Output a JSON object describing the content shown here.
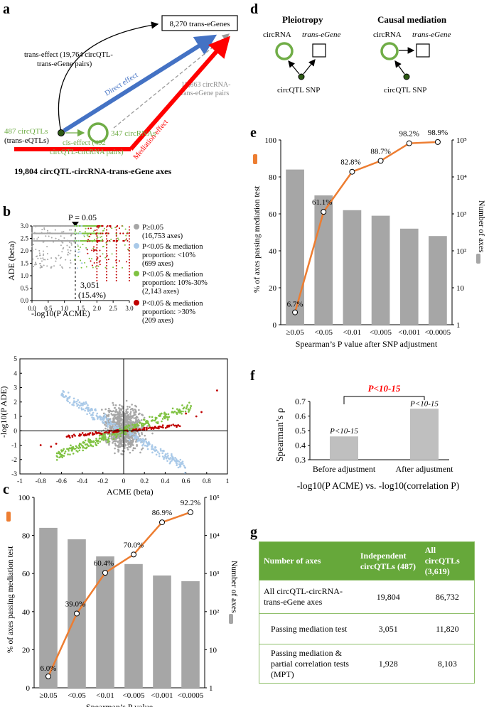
{
  "panels": {
    "a": "a",
    "b": "b",
    "c": "c",
    "d": "d",
    "e": "e",
    "f": "f",
    "g": "g"
  },
  "panel_a": {
    "egenes_box": "8,270 trans-eGenes",
    "trans_effect_line1": "trans-effect (19,764 circQTL-",
    "trans_effect_line2": "trans-eGene pairs)",
    "direct_effect": "Direct effect",
    "circrna_pairs_line1": "18,863 circRNA-",
    "circrna_pairs_line2": "trans-eGene pairs",
    "circqtls_line1": "487 circQTLs",
    "circqtls_line2": "(trans-eQTLs)",
    "cis_effect_line1": "cis-effect (492",
    "cis_effect_line2": "circQTL-circRNA pairs)",
    "circrnas": "347 circRNAs",
    "mediation_effect": "Mediation effect",
    "axes_total": "19,804 circQTL-circRNA-trans-eGene axes"
  },
  "panel_d": {
    "pleiotropy_title": "Pleiotropy",
    "causal_title": "Causal mediation",
    "circrna": "circRNA",
    "trans_egene": "trans-eGene",
    "snp": "circQTL SNP"
  },
  "colors": {
    "gray": "#a6a6a6",
    "light_blue": "#a9c9e8",
    "green": "#7fc241",
    "red": "#c00000",
    "orange": "#ed7d31",
    "blue_arrow": "#4472c4",
    "red_arrow": "#ff0000",
    "table_green": "#66a83a"
  },
  "panel_b_top": {
    "p_label": "P = 0.05",
    "count_label": "3,051",
    "pct_label": "(15.4%)",
    "legend": [
      {
        "line1": "P≥0.05",
        "line2": "(16,753 axes)",
        "color": "#a6a6a6"
      },
      {
        "line1": "P<0.05 & mediation",
        "line2": "proportion: <10%",
        "line3": "(699 axes)",
        "color": "#a9c9e8"
      },
      {
        "line1": "P<0.05 & mediation",
        "line2": "proportion: 10%-30%",
        "line3": "(2,143 axes)",
        "color": "#7fc241"
      },
      {
        "line1": "P<0.05 & mediation",
        "line2": "proportion: >30%",
        "line3": "(209 axes)",
        "color": "#c00000"
      }
    ]
  },
  "chart_data": [
    {
      "id": "b_top",
      "type": "scatter",
      "xlabel": "-log10(P ACME)",
      "ylabel": "-log10(P ADE)",
      "xlim": [
        0,
        3.0
      ],
      "ylim": [
        0,
        3.0
      ],
      "xticks": [
        "0.0",
        "0.5",
        "1.0",
        "1.5",
        "2.0",
        "2.5",
        "3.0"
      ],
      "yticks": [
        "0.0",
        "0.5",
        "1.0",
        "1.5",
        "2.0",
        "2.5",
        "3.0"
      ],
      "threshold_x": 1.3
    },
    {
      "id": "b_bottom",
      "type": "scatter",
      "xlabel": "ACME (beta)",
      "ylabel": "ADE (beta)",
      "xlim": [
        -1,
        1
      ],
      "ylim": [
        -3,
        5
      ],
      "xticks": [
        "-1",
        "-0.8",
        "-0.6",
        "-0.4",
        "-0.2",
        "0",
        "0.2",
        "0.4",
        "0.6",
        "0.8",
        "1"
      ],
      "yticks": [
        "-3",
        "-2",
        "-1",
        "0",
        "1",
        "2",
        "3",
        "4",
        "5"
      ]
    },
    {
      "id": "c",
      "type": "bar+line",
      "xlabel": "Spearman’s P value",
      "ylabel_left": "% of axes passing mediation test",
      "ylabel_right": "Number of axes",
      "categories": [
        "≥0.05",
        "<0.05",
        "<0.01",
        "<0.005",
        "<0.001",
        "<0.0005"
      ],
      "bar_values_log": [
        4.2,
        3.9,
        3.45,
        3.25,
        2.95,
        2.8
      ],
      "line_values": [
        6.0,
        39.0,
        60.4,
        70.0,
        86.9,
        92.2
      ],
      "line_labels": [
        "6.0%",
        "39.0%",
        "60.4%",
        "70.0%",
        "86.9%",
        "92.2%"
      ],
      "ylim_left": [
        0,
        100
      ],
      "yticks_left": [
        "0",
        "20",
        "40",
        "60",
        "80",
        "100"
      ],
      "yticks_right": [
        "1",
        "10",
        "10²",
        "10³",
        "10⁴",
        "10⁵"
      ]
    },
    {
      "id": "e",
      "type": "bar+line",
      "xlabel": "Spearman’s P value after SNP adjustment",
      "ylabel_left": "% of axes passing mediation test",
      "ylabel_right": "Number of axes",
      "categories": [
        "≥0.05",
        "<0.05",
        "<0.01",
        "<0.005",
        "<0.001",
        "<0.0005"
      ],
      "bar_values_log": [
        4.2,
        3.5,
        3.1,
        2.95,
        2.6,
        2.4
      ],
      "line_values": [
        6.7,
        61.1,
        82.8,
        88.7,
        98.2,
        98.9
      ],
      "line_labels": [
        "6.7%",
        "61.1%",
        "82.8%",
        "88.7%",
        "98.2%",
        "98.9%"
      ],
      "ylim_left": [
        0,
        100
      ],
      "yticks_left": [
        "0",
        "20",
        "40",
        "60",
        "80",
        "100"
      ],
      "yticks_right": [
        "1",
        "10",
        "10²",
        "10³",
        "10⁴",
        "10⁵"
      ]
    },
    {
      "id": "f",
      "type": "bar",
      "categories": [
        "Before adjustment",
        "After adjustment"
      ],
      "values": [
        0.46,
        0.65
      ],
      "bar_labels": [
        "P<10-15",
        "P<10-15"
      ],
      "ylabel": "Spearman’s ρ",
      "xlabel": "-log10(P ACME) vs. -log10(correlation P)",
      "ylim": [
        0.3,
        0.7
      ],
      "yticks": [
        "0.3",
        "0.4",
        "0.5",
        "0.6",
        "0.7"
      ],
      "comparison_label": "P<10-15"
    }
  ],
  "panel_g": {
    "header": [
      "Number of axes",
      "Independent circQTLs (487)",
      "All circQTLs (3,619)"
    ],
    "rows": [
      [
        "All circQTL-circRNA-trans-eGene axes",
        "19,804",
        "86,732"
      ],
      [
        "Passing mediation test",
        "3,051",
        "11,820"
      ],
      [
        "Passing mediation & partial correlation tests (MPT)",
        "1,928",
        "8,103"
      ]
    ]
  }
}
